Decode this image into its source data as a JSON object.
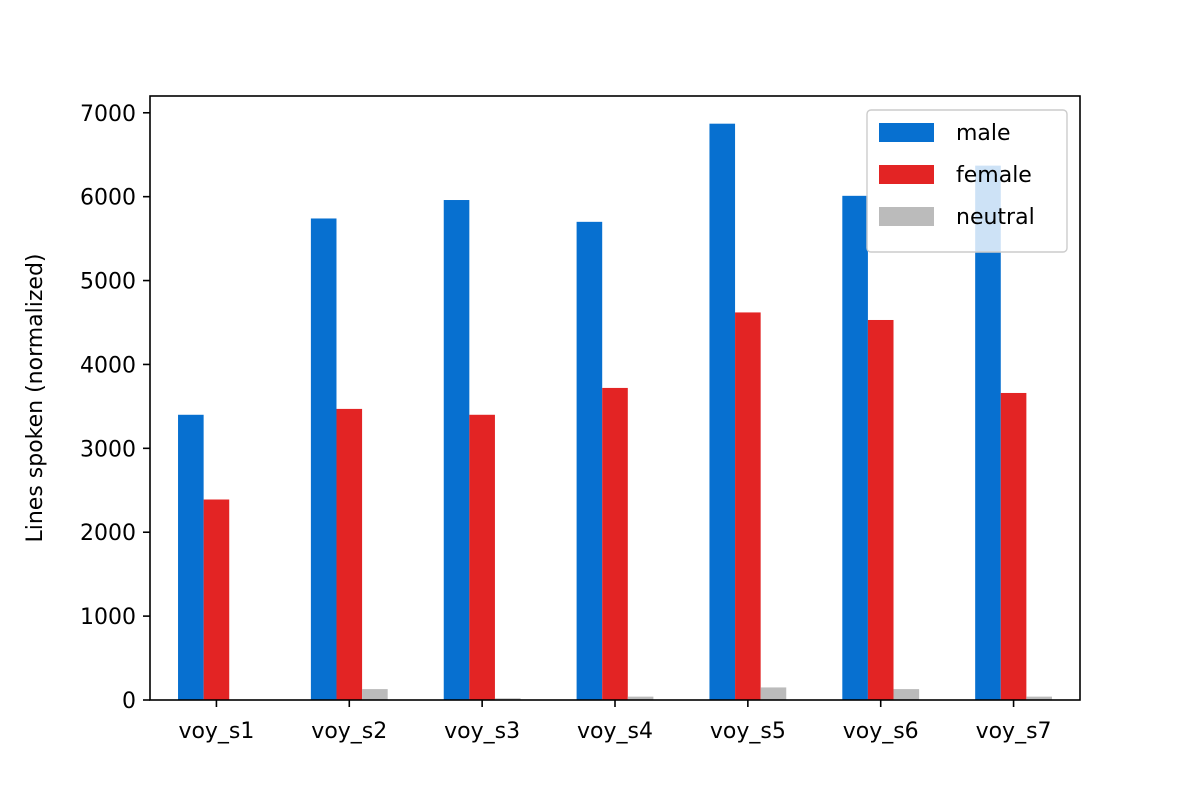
{
  "chart_data": {
    "type": "bar",
    "title": "",
    "xlabel": "",
    "ylabel": "Lines spoken (normalized)",
    "categories": [
      "voy_s1",
      "voy_s2",
      "voy_s3",
      "voy_s4",
      "voy_s5",
      "voy_s6",
      "voy_s7"
    ],
    "series": [
      {
        "name": "male",
        "color": "#0770d0",
        "values": [
          3400,
          5740,
          5960,
          5700,
          6870,
          6010,
          6370
        ]
      },
      {
        "name": "female",
        "color": "#e32424",
        "values": [
          2390,
          3470,
          3400,
          3720,
          4620,
          4530,
          3660
        ]
      },
      {
        "name": "neutral",
        "color": "#bbbbbb",
        "values": [
          0,
          130,
          20,
          40,
          150,
          130,
          40
        ]
      }
    ],
    "ylim": [
      0,
      7200
    ],
    "yticks": [
      0,
      1000,
      2000,
      3000,
      4000,
      5000,
      6000,
      7000
    ],
    "grid": false,
    "legend_position": "top-right"
  }
}
